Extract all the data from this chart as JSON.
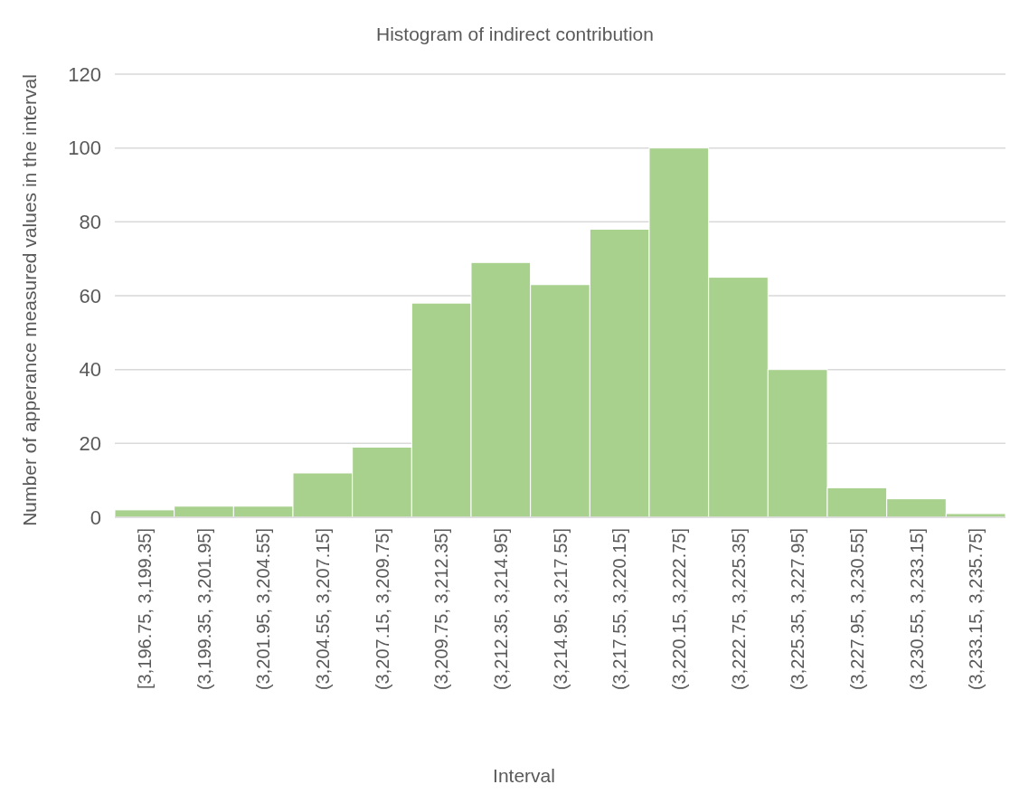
{
  "chart_data": {
    "type": "bar",
    "title": "Histogram of indirect contribution",
    "xlabel": "Interval",
    "ylabel": "Number of apperance measured values in the interval",
    "categories": [
      "[3,196.75, 3,199.35]",
      "(3,199.35, 3,201.95]",
      "(3,201.95, 3,204.55]",
      "(3,204.55, 3,207.15]",
      "(3,207.15, 3,209.75]",
      "(3,209.75, 3,212.35]",
      "(3,212.35, 3,214.95]",
      "(3,214.95, 3,217.55]",
      "(3,217.55, 3,220.15]",
      "(3,220.15, 3,222.75]",
      "(3,222.75, 3,225.35]",
      "(3,225.35, 3,227.95]",
      "(3,227.95, 3,230.55]",
      "(3,230.55, 3,233.15]",
      "(3,233.15, 3,235.75]"
    ],
    "values": [
      2,
      3,
      3,
      12,
      19,
      58,
      69,
      63,
      78,
      100,
      65,
      40,
      8,
      5,
      1
    ],
    "color": "#a9d18e",
    "ylim": [
      0,
      120
    ],
    "yticks": [
      0,
      20,
      40,
      60,
      80,
      100,
      120
    ],
    "grid": "y"
  }
}
